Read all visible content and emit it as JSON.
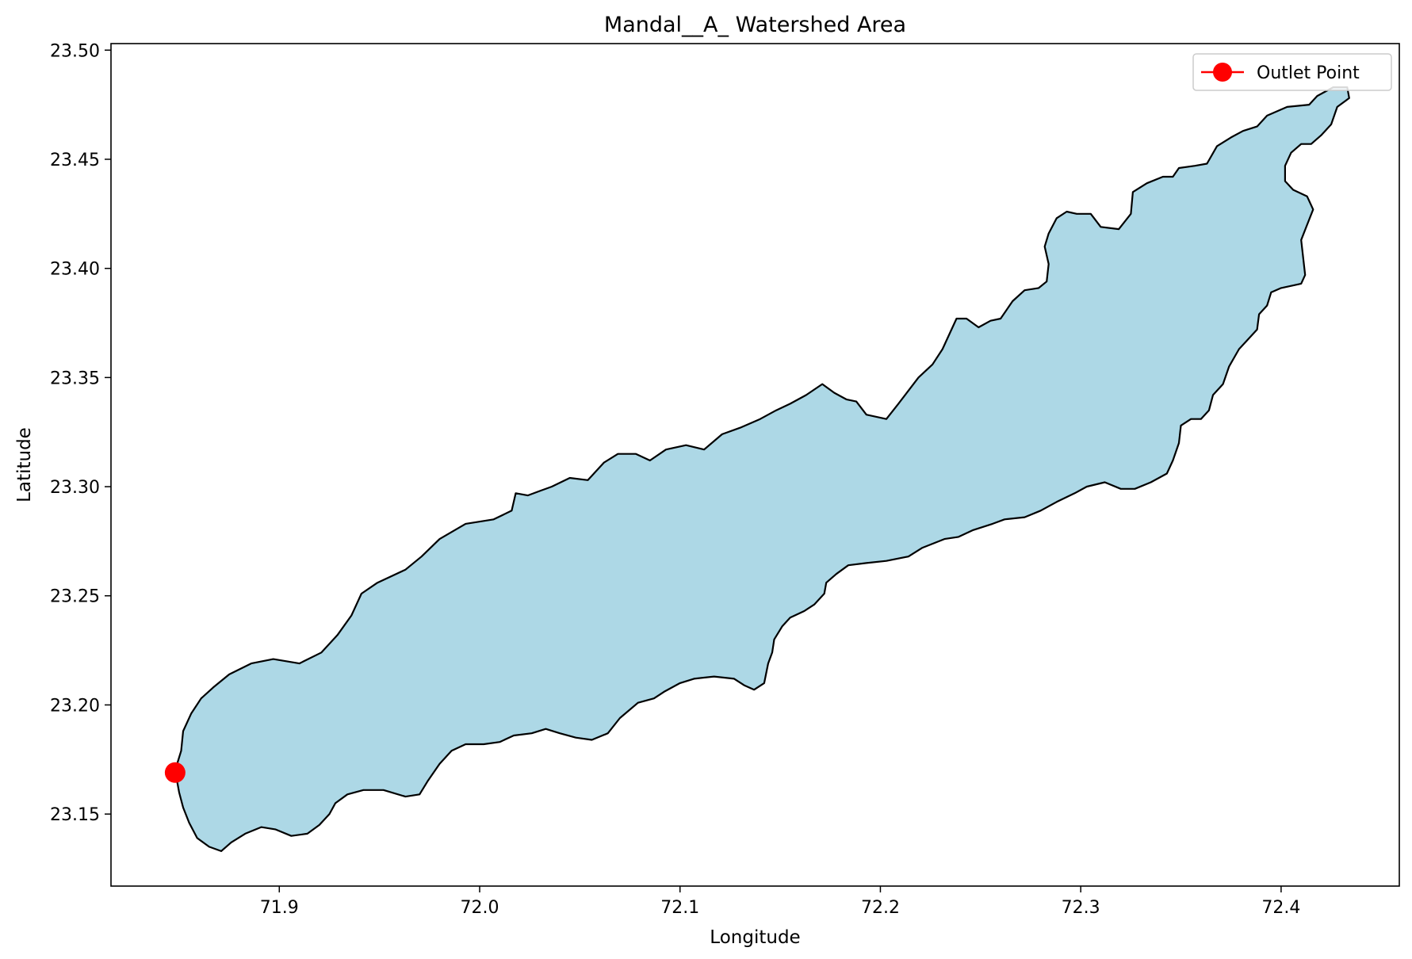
{
  "chart_data": {
    "type": "map",
    "title": "Mandal__A_ Watershed Area",
    "xlabel": "Longitude",
    "ylabel": "Latitude",
    "xlim": [
      71.816,
      72.459
    ],
    "ylim": [
      23.117,
      23.503
    ],
    "xticks": [
      {
        "value": 71.9,
        "label": "71.9"
      },
      {
        "value": 72.0,
        "label": "72.0"
      },
      {
        "value": 72.1,
        "label": "72.1"
      },
      {
        "value": 72.2,
        "label": "72.2"
      },
      {
        "value": 72.3,
        "label": "72.3"
      },
      {
        "value": 72.4,
        "label": "72.4"
      }
    ],
    "yticks": [
      {
        "value": 23.15,
        "label": "23.15"
      },
      {
        "value": 23.2,
        "label": "23.20"
      },
      {
        "value": 23.25,
        "label": "23.25"
      },
      {
        "value": 23.3,
        "label": "23.30"
      },
      {
        "value": 23.35,
        "label": "23.35"
      },
      {
        "value": 23.4,
        "label": "23.40"
      },
      {
        "value": 23.45,
        "label": "23.45"
      },
      {
        "value": 23.5,
        "label": "23.50"
      }
    ],
    "grid": false,
    "legend": {
      "placement": "upper right",
      "entries": [
        {
          "label": "Outlet Point",
          "color": "#ff0000",
          "marker": "circle"
        }
      ]
    },
    "watershed": {
      "fill": "#add8e6",
      "edge": "#000000",
      "boundary": [
        [
          71.848,
          23.17
        ],
        [
          71.851,
          23.179
        ],
        [
          71.852,
          23.188
        ],
        [
          71.856,
          23.196
        ],
        [
          71.861,
          23.203
        ],
        [
          71.867,
          23.208
        ],
        [
          71.875,
          23.214
        ],
        [
          71.886,
          23.219
        ],
        [
          71.897,
          23.221
        ],
        [
          71.91,
          23.219
        ],
        [
          71.921,
          23.224
        ],
        [
          71.929,
          23.232
        ],
        [
          71.936,
          23.241
        ],
        [
          71.941,
          23.251
        ],
        [
          71.949,
          23.256
        ],
        [
          71.963,
          23.262
        ],
        [
          71.971,
          23.268
        ],
        [
          71.98,
          23.276
        ],
        [
          71.993,
          23.283
        ],
        [
          72.007,
          23.285
        ],
        [
          72.016,
          23.289
        ],
        [
          72.018,
          23.297
        ],
        [
          72.024,
          23.296
        ],
        [
          72.03,
          23.298
        ],
        [
          72.036,
          23.3
        ],
        [
          72.045,
          23.304
        ],
        [
          72.054,
          23.303
        ],
        [
          72.062,
          23.311
        ],
        [
          72.069,
          23.315
        ],
        [
          72.078,
          23.315
        ],
        [
          72.085,
          23.312
        ],
        [
          72.093,
          23.317
        ],
        [
          72.103,
          23.319
        ],
        [
          72.112,
          23.317
        ],
        [
          72.121,
          23.324
        ],
        [
          72.13,
          23.327
        ],
        [
          72.14,
          23.331
        ],
        [
          72.148,
          23.335
        ],
        [
          72.155,
          23.338
        ],
        [
          72.163,
          23.342
        ],
        [
          72.171,
          23.347
        ],
        [
          72.177,
          23.343
        ],
        [
          72.183,
          23.34
        ],
        [
          72.188,
          23.339
        ],
        [
          72.193,
          23.333
        ],
        [
          72.198,
          23.332
        ],
        [
          72.203,
          23.331
        ],
        [
          72.209,
          23.338
        ],
        [
          72.214,
          23.344
        ],
        [
          72.219,
          23.35
        ],
        [
          72.226,
          23.356
        ],
        [
          72.231,
          23.363
        ],
        [
          72.235,
          23.371
        ],
        [
          72.238,
          23.377
        ],
        [
          72.243,
          23.377
        ],
        [
          72.249,
          23.373
        ],
        [
          72.255,
          23.376
        ],
        [
          72.26,
          23.377
        ],
        [
          72.266,
          23.385
        ],
        [
          72.272,
          23.39
        ],
        [
          72.279,
          23.391
        ],
        [
          72.283,
          23.394
        ],
        [
          72.284,
          23.402
        ],
        [
          72.282,
          23.41
        ],
        [
          72.284,
          23.416
        ],
        [
          72.288,
          23.423
        ],
        [
          72.293,
          23.426
        ],
        [
          72.298,
          23.425
        ],
        [
          72.305,
          23.425
        ],
        [
          72.31,
          23.419
        ],
        [
          72.319,
          23.418
        ],
        [
          72.325,
          23.425
        ],
        [
          72.326,
          23.435
        ],
        [
          72.333,
          23.439
        ],
        [
          72.341,
          23.442
        ],
        [
          72.346,
          23.442
        ],
        [
          72.349,
          23.446
        ],
        [
          72.357,
          23.447
        ],
        [
          72.363,
          23.448
        ],
        [
          72.368,
          23.456
        ],
        [
          72.375,
          23.46
        ],
        [
          72.381,
          23.463
        ],
        [
          72.388,
          23.465
        ],
        [
          72.393,
          23.47
        ],
        [
          72.403,
          23.474
        ],
        [
          72.414,
          23.475
        ],
        [
          72.418,
          23.479
        ],
        [
          72.426,
          23.483
        ],
        [
          72.433,
          23.483
        ],
        [
          72.434,
          23.478
        ],
        [
          72.428,
          23.474
        ],
        [
          72.425,
          23.466
        ],
        [
          72.42,
          23.461
        ],
        [
          72.415,
          23.457
        ],
        [
          72.41,
          23.457
        ],
        [
          72.405,
          23.453
        ],
        [
          72.402,
          23.447
        ],
        [
          72.402,
          23.44
        ],
        [
          72.406,
          23.436
        ],
        [
          72.413,
          23.433
        ],
        [
          72.416,
          23.427
        ],
        [
          72.413,
          23.42
        ],
        [
          72.41,
          23.413
        ],
        [
          72.411,
          23.405
        ],
        [
          72.412,
          23.397
        ],
        [
          72.41,
          23.393
        ],
        [
          72.4,
          23.391
        ],
        [
          72.395,
          23.389
        ],
        [
          72.393,
          23.383
        ],
        [
          72.389,
          23.379
        ],
        [
          72.388,
          23.372
        ],
        [
          72.384,
          23.368
        ],
        [
          72.379,
          23.363
        ],
        [
          72.374,
          23.355
        ],
        [
          72.371,
          23.347
        ],
        [
          72.366,
          23.342
        ],
        [
          72.364,
          23.335
        ],
        [
          72.36,
          23.331
        ],
        [
          72.355,
          23.331
        ],
        [
          72.35,
          23.328
        ],
        [
          72.349,
          23.32
        ],
        [
          72.346,
          23.312
        ],
        [
          72.343,
          23.306
        ],
        [
          72.335,
          23.302
        ],
        [
          72.327,
          23.299
        ],
        [
          72.32,
          23.299
        ],
        [
          72.312,
          23.302
        ],
        [
          72.303,
          23.3
        ],
        [
          72.297,
          23.297
        ],
        [
          72.288,
          23.293
        ],
        [
          72.28,
          23.289
        ],
        [
          72.272,
          23.286
        ],
        [
          72.262,
          23.285
        ],
        [
          72.256,
          23.283
        ],
        [
          72.246,
          23.28
        ],
        [
          72.239,
          23.277
        ],
        [
          72.232,
          23.276
        ],
        [
          72.221,
          23.272
        ],
        [
          72.214,
          23.268
        ],
        [
          72.203,
          23.266
        ],
        [
          72.193,
          23.265
        ],
        [
          72.184,
          23.264
        ],
        [
          72.178,
          23.26
        ],
        [
          72.173,
          23.256
        ],
        [
          72.172,
          23.251
        ],
        [
          72.167,
          23.246
        ],
        [
          72.162,
          23.243
        ],
        [
          72.155,
          23.24
        ],
        [
          72.151,
          23.236
        ],
        [
          72.147,
          23.23
        ],
        [
          72.146,
          23.224
        ],
        [
          72.144,
          23.219
        ],
        [
          72.142,
          23.21
        ],
        [
          72.137,
          23.207
        ],
        [
          72.132,
          23.209
        ],
        [
          72.127,
          23.212
        ],
        [
          72.117,
          23.213
        ],
        [
          72.107,
          23.212
        ],
        [
          72.1,
          23.21
        ],
        [
          72.092,
          23.206
        ],
        [
          72.087,
          23.203
        ],
        [
          72.079,
          23.201
        ],
        [
          72.07,
          23.194
        ],
        [
          72.064,
          23.187
        ],
        [
          72.056,
          23.184
        ],
        [
          72.048,
          23.185
        ],
        [
          72.04,
          23.187
        ],
        [
          72.033,
          23.189
        ],
        [
          72.026,
          23.187
        ],
        [
          72.017,
          23.186
        ],
        [
          72.01,
          23.183
        ],
        [
          72.002,
          23.182
        ],
        [
          71.993,
          23.182
        ],
        [
          71.986,
          23.179
        ],
        [
          71.98,
          23.173
        ],
        [
          71.974,
          23.165
        ],
        [
          71.97,
          23.159
        ],
        [
          71.963,
          23.158
        ],
        [
          71.952,
          23.161
        ],
        [
          71.942,
          23.161
        ],
        [
          71.934,
          23.159
        ],
        [
          71.928,
          23.155
        ],
        [
          71.925,
          23.15
        ],
        [
          71.92,
          23.145
        ],
        [
          71.914,
          23.141
        ],
        [
          71.906,
          23.14
        ],
        [
          71.898,
          23.143
        ],
        [
          71.891,
          23.144
        ],
        [
          71.883,
          23.141
        ],
        [
          71.876,
          23.137
        ],
        [
          71.871,
          23.133
        ],
        [
          71.865,
          23.135
        ],
        [
          71.859,
          23.139
        ],
        [
          71.855,
          23.146
        ],
        [
          71.852,
          23.153
        ],
        [
          71.85,
          23.16
        ],
        [
          71.849,
          23.165
        ]
      ]
    },
    "outlet": {
      "label": "Outlet Point",
      "lon": 71.848,
      "lat": 23.169,
      "color": "#ff0000"
    }
  }
}
